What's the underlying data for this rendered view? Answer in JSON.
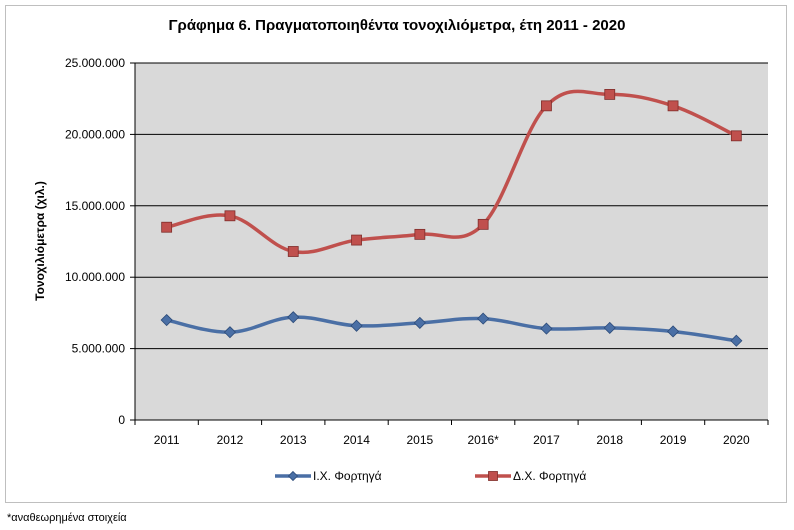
{
  "chart_data": {
    "type": "line",
    "title": "Γράφημα 6. Πραγματοποιηθέντα τονοχιλιόμετρα, έτη 2011 - 2020",
    "ylabel": "Τονοχιλιόμετρα (χιλ.)",
    "xlabel": "",
    "categories": [
      "2011",
      "2012",
      "2013",
      "2014",
      "2015",
      "2016*",
      "2017",
      "2018",
      "2019",
      "2020"
    ],
    "ylim": [
      0,
      25000000
    ],
    "yticks": [
      0,
      5000000,
      10000000,
      15000000,
      20000000,
      25000000
    ],
    "ytick_labels": [
      "0",
      "5.000.000",
      "10.000.000",
      "15.000.000",
      "20.000.000",
      "25.000.000"
    ],
    "grid": true,
    "legend_position": "bottom",
    "series": [
      {
        "name": "Ι.Χ. Φορτηγά",
        "color": "#4a6fa5",
        "marker": "diamond",
        "values": [
          7000000,
          6150000,
          7200000,
          6600000,
          6800000,
          7100000,
          6400000,
          6450000,
          6200000,
          5550000
        ]
      },
      {
        "name": "Δ.Χ. Φορτηγά",
        "color": "#c0504d",
        "marker": "square",
        "values": [
          13500000,
          14300000,
          11800000,
          12600000,
          13000000,
          13700000,
          22000000,
          22800000,
          22000000,
          19900000
        ]
      }
    ]
  },
  "footnote": "*αναθεωρημένα στοιχεία"
}
